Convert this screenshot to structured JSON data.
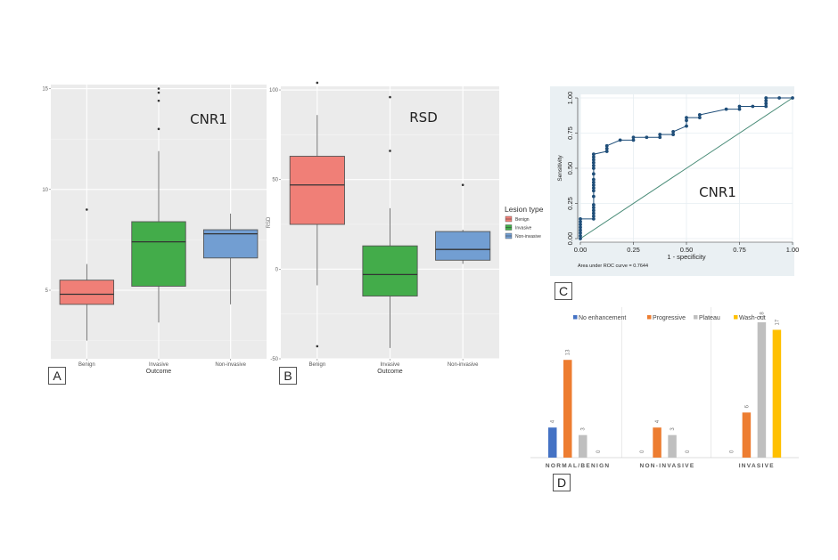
{
  "chart_data": [
    {
      "id": "A",
      "type": "box",
      "panel_label": "A",
      "title": "CNR1",
      "xlabel": "Outcome",
      "ylabel": "",
      "categories": [
        "Benign",
        "Invasive",
        "Non-invasive"
      ],
      "yticks": [
        5,
        10,
        15
      ],
      "ylim": [
        1.6,
        15.2
      ],
      "grid": true,
      "boxes": [
        {
          "category": "Benign",
          "whisker_low": 2.5,
          "q1": 4.3,
          "median": 4.8,
          "q3": 5.5,
          "whisker_high": 6.3,
          "outliers": [
            9.0
          ],
          "color": "#F07F77"
        },
        {
          "category": "Invasive",
          "whisker_low": 3.4,
          "q1": 5.2,
          "median": 7.4,
          "q3": 8.4,
          "whisker_high": 11.9,
          "outliers": [
            13.0,
            14.4,
            14.8,
            15.0
          ],
          "color": "#43AC4A"
        },
        {
          "category": "Non-invasive",
          "whisker_low": 4.3,
          "q1": 6.6,
          "median": 7.8,
          "q3": 8.0,
          "whisker_high": 8.8,
          "outliers": [],
          "color": "#729ED2"
        }
      ]
    },
    {
      "id": "B",
      "type": "box",
      "panel_label": "B",
      "title": "RSD",
      "xlabel": "Outcome",
      "ylabel": "RSD",
      "categories": [
        "Benign",
        "Invasive",
        "Non-invasive"
      ],
      "yticks": [
        -50,
        0,
        50,
        100
      ],
      "ylim": [
        -50,
        102
      ],
      "grid": true,
      "boxes": [
        {
          "category": "Benign",
          "whisker_low": -9,
          "q1": 25,
          "median": 47,
          "q3": 63,
          "whisker_high": 86,
          "outliers": [
            -43,
            104
          ],
          "color": "#F07F77"
        },
        {
          "category": "Invasive",
          "whisker_low": -44,
          "q1": -15,
          "median": -3,
          "q3": 13,
          "whisker_high": 34,
          "outliers": [
            66,
            96
          ],
          "color": "#43AC4A"
        },
        {
          "category": "Non-invasive",
          "whisker_low": 3,
          "q1": 5,
          "median": 11,
          "q3": 21,
          "whisker_high": 22,
          "outliers": [
            47
          ],
          "color": "#729ED2"
        }
      ],
      "legend": {
        "title": "Lesion type",
        "position": "right",
        "items": [
          {
            "label": "Benign",
            "color": "#F07F77"
          },
          {
            "label": "Invasive",
            "color": "#43AC4A"
          },
          {
            "label": "Non-invasive",
            "color": "#729ED2"
          }
        ]
      }
    },
    {
      "id": "C",
      "type": "line",
      "panel_label": "C",
      "title": "CNR1",
      "xlabel": "1 - specificity",
      "ylabel": "Sensitivity",
      "xlim": [
        0,
        1
      ],
      "ylim": [
        0,
        1
      ],
      "xticks": [
        "0.00",
        "0.25",
        "0.50",
        "0.75",
        "1.00"
      ],
      "yticks": [
        "0.00",
        "0.25",
        "0.50",
        "0.75",
        "1.00"
      ],
      "grid": true,
      "note": "Area under ROC curve = 0.7644",
      "series": [
        {
          "name": "ROC curve",
          "color": "#1F4E79",
          "points": [
            [
              0,
              0
            ],
            [
              0,
              0.02
            ],
            [
              0,
              0.04
            ],
            [
              0,
              0.06
            ],
            [
              0,
              0.08
            ],
            [
              0,
              0.1
            ],
            [
              0,
              0.12
            ],
            [
              0,
              0.14
            ],
            [
              0.0625,
              0.14
            ],
            [
              0.0625,
              0.16
            ],
            [
              0.0625,
              0.18
            ],
            [
              0.0625,
              0.2
            ],
            [
              0.0625,
              0.22
            ],
            [
              0.0625,
              0.24
            ],
            [
              0.0625,
              0.3
            ],
            [
              0.0625,
              0.34
            ],
            [
              0.0625,
              0.36
            ],
            [
              0.0625,
              0.38
            ],
            [
              0.0625,
              0.4
            ],
            [
              0.0625,
              0.42
            ],
            [
              0.0625,
              0.46
            ],
            [
              0.0625,
              0.5
            ],
            [
              0.0625,
              0.52
            ],
            [
              0.0625,
              0.54
            ],
            [
              0.0625,
              0.56
            ],
            [
              0.0625,
              0.58
            ],
            [
              0.0625,
              0.6
            ],
            [
              0.125,
              0.62
            ],
            [
              0.125,
              0.64
            ],
            [
              0.125,
              0.66
            ],
            [
              0.1875,
              0.7
            ],
            [
              0.25,
              0.7
            ],
            [
              0.25,
              0.72
            ],
            [
              0.3125,
              0.72
            ],
            [
              0.375,
              0.72
            ],
            [
              0.375,
              0.74
            ],
            [
              0.4375,
              0.74
            ],
            [
              0.4375,
              0.76
            ],
            [
              0.5,
              0.8
            ],
            [
              0.5,
              0.84
            ],
            [
              0.5,
              0.86
            ],
            [
              0.5625,
              0.86
            ],
            [
              0.5625,
              0.88
            ],
            [
              0.6875,
              0.92
            ],
            [
              0.75,
              0.92
            ],
            [
              0.75,
              0.94
            ],
            [
              0.8125,
              0.94
            ],
            [
              0.875,
              0.94
            ],
            [
              0.875,
              0.96
            ],
            [
              0.875,
              0.98
            ],
            [
              0.875,
              1.0
            ],
            [
              0.9375,
              1.0
            ],
            [
              1.0,
              1.0
            ]
          ]
        },
        {
          "name": "Reference",
          "color": "#4A8C78",
          "points": [
            [
              0,
              0
            ],
            [
              1,
              1
            ]
          ]
        }
      ]
    },
    {
      "id": "D",
      "type": "bar",
      "panel_label": "D",
      "categories": [
        "NORMAL/BENIGN",
        "NON-INVASIVE",
        "INVASIVE"
      ],
      "ylim": [
        0,
        18
      ],
      "grid": false,
      "legend": {
        "position": "top"
      },
      "series": [
        {
          "name": "No enhancement",
          "color": "#4472C4",
          "values": [
            4,
            0,
            0
          ]
        },
        {
          "name": "Progressive",
          "color": "#ED7D31",
          "values": [
            13,
            4,
            6
          ]
        },
        {
          "name": "Plateau",
          "color": "#BFBFBF",
          "values": [
            3,
            3,
            18
          ]
        },
        {
          "name": "Wash-out",
          "color": "#FFC000",
          "values": [
            0,
            0,
            17
          ]
        }
      ]
    }
  ]
}
